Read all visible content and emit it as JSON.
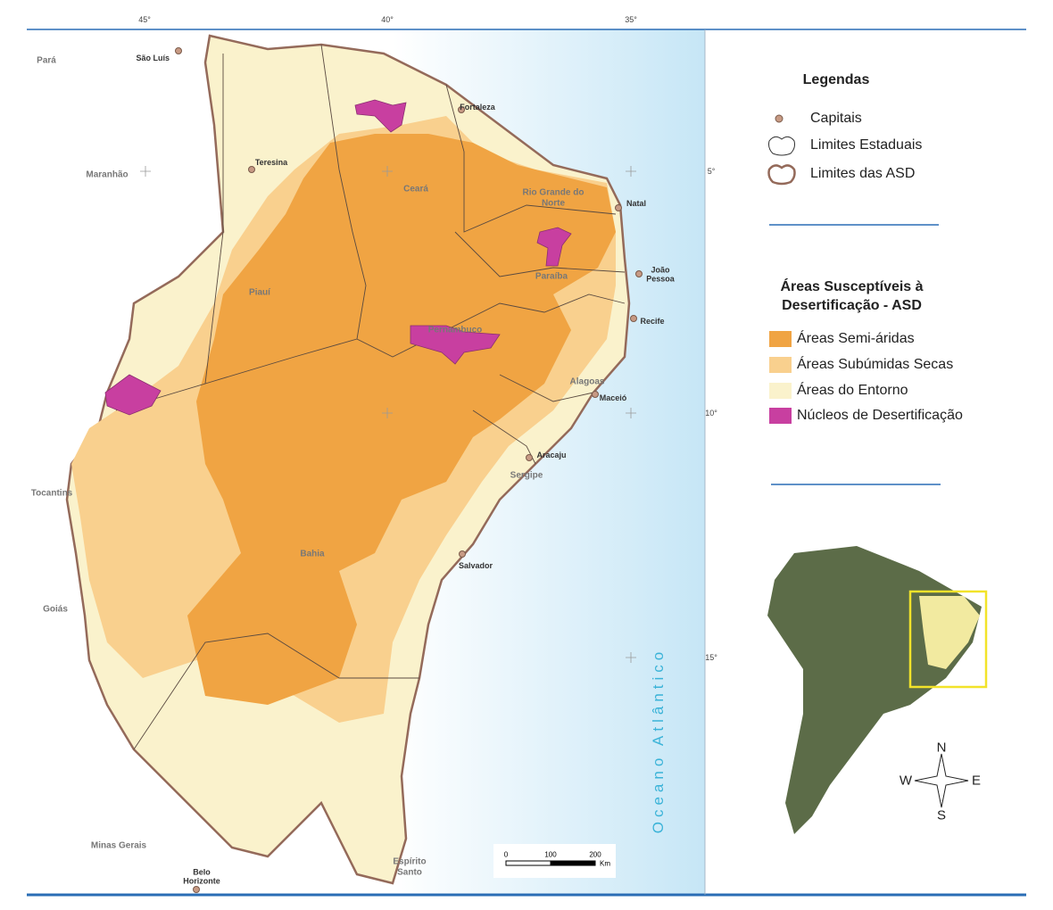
{
  "map": {
    "graticule": {
      "longitudes": [
        "45°",
        "40°",
        "35°"
      ],
      "latitudes": [
        "5°",
        "10°",
        "15°"
      ]
    },
    "states": [
      "Pará",
      "Maranhão",
      "Tocantins",
      "Goiás",
      "Minas Gerais",
      "Piauí",
      "Ceará",
      "Rio Grande do Norte",
      "Paraíba",
      "Pernambuco",
      "Alagoas",
      "Sergipe",
      "Bahia",
      "Espírito Santo"
    ],
    "capitals": [
      "São Luís",
      "Teresina",
      "Fortaleza",
      "Natal",
      "João Pessoa",
      "Recife",
      "Maceió",
      "Aracaju",
      "Salvador",
      "Belo Horizonte"
    ],
    "ocean": "Oceano Atlântico",
    "scale": {
      "ticks": [
        "0",
        "100",
        "200"
      ],
      "unit": "Km"
    }
  },
  "legend": {
    "title": "Legendas",
    "items": [
      "Capitais",
      "Limites Estaduais",
      "Limites das ASD"
    ],
    "asd_title": "Áreas Susceptíveis à Desertificação - ASD",
    "asd_items": [
      {
        "label": "Áreas Semi-áridas",
        "color": "#f0a443"
      },
      {
        "label": "Áreas Subúmidas Secas",
        "color": "#f9d08e"
      },
      {
        "label": "Áreas do Entorno",
        "color": "#faf2cc"
      },
      {
        "label": "Núcleos de Desertificação",
        "color": "#c83fa0"
      }
    ]
  },
  "inset": {
    "compass": [
      "N",
      "W",
      "E",
      "S"
    ]
  }
}
